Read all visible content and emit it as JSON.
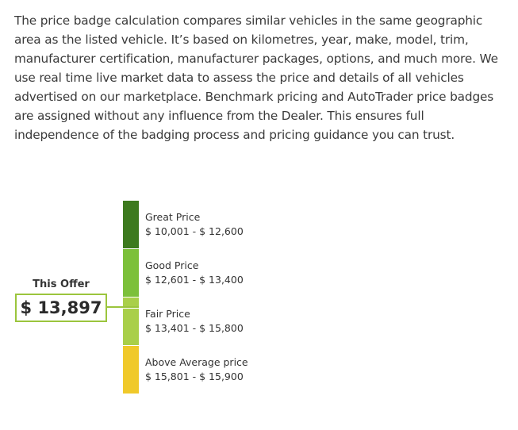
{
  "description": "The price badge calculation compares similar vehicles in the same geographic area as the listed vehicle. It’s based on kilometres, year, make, model, trim, manufacturer certification, manufacturer packages, options, and much more. We use real time live market data to assess the price and details of all vehicles advertised on our marketplace. Benchmark pricing and AutoTrader price badges are assigned without any influence from the Dealer. This ensures full independence of the badging process and pricing guidance you can trust.",
  "offer": {
    "label": "This Offer",
    "price": "$ 13,897",
    "highlight_color": "#9bc53d"
  },
  "tiers": [
    {
      "name": "Great Price",
      "range": "$ 10,001 - $ 12,600",
      "color": "#3d7a1e"
    },
    {
      "name": "Good Price",
      "range": "$ 12,601 - $ 13,400",
      "color": "#7cc03a"
    },
    {
      "name": "Fair Price",
      "range": "$ 13,401 - $ 15,800",
      "color": "#a9cf49"
    },
    {
      "name": "Above Average price",
      "range": "$ 15,801 - $ 15,900",
      "color": "#f0c92a"
    }
  ]
}
